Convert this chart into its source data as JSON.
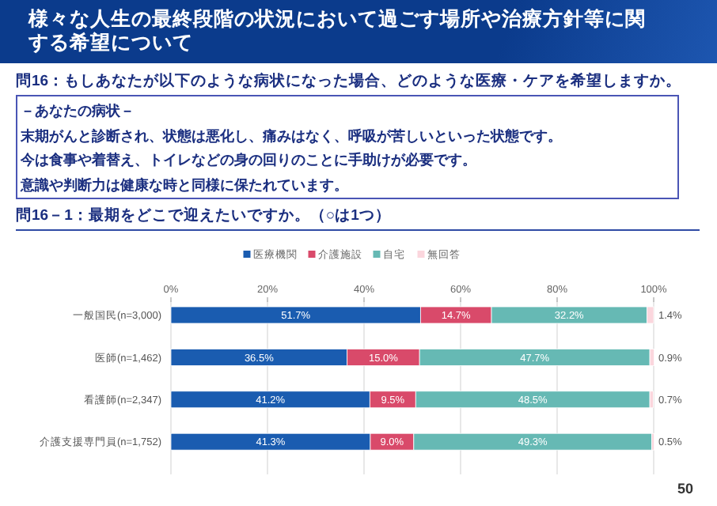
{
  "chart_data": {
    "type": "bar",
    "orientation": "horizontal",
    "stacked": true,
    "title": "様々な人生の最終段階の状況において過ごす場所や治療方針等に関する希望について",
    "subtitle": "問16：もしあなたが以下のような病状になった場合、どのような医療・ケアを希望しますか。",
    "annotations": [
      "－あなたの病状－",
      "末期がんと診断され、状態は悪化し、痛みはなく、呼吸が苦しいといった状態です。",
      "今は食事や着替え、トイレなどの身の回りのことに手助けが必要です。",
      "意識や判断力は健康な時と同様に保たれています。",
      "問16－1：最期をどこで迎えたいですか。（○は1つ）",
      "50"
    ],
    "categories": [
      "一般国民(n=3,000)",
      "医師(n=1,462)",
      "看護師(n=2,347)",
      "介護支援専門員(n=1,752)"
    ],
    "series": [
      {
        "name": "医療機関",
        "color": "#1a5cb0",
        "values": [
          51.7,
          36.5,
          41.2,
          41.3
        ],
        "value_labels": [
          "51.7%",
          "36.5%",
          "41.2%",
          "41.3%"
        ]
      },
      {
        "name": "介護施設",
        "color": "#d94a6a",
        "values": [
          14.7,
          15.0,
          9.5,
          9.0
        ],
        "value_labels": [
          "14.7%",
          "15.0%",
          "9.5%",
          "9.0%"
        ]
      },
      {
        "name": "自宅",
        "color": "#66b9b4",
        "values": [
          32.2,
          47.7,
          48.5,
          49.3
        ],
        "value_labels": [
          "32.2%",
          "47.7%",
          "48.5%",
          "49.3%"
        ]
      },
      {
        "name": "無回答",
        "color": "#fbd6dd",
        "values": [
          1.4,
          0.9,
          0.7,
          0.5
        ],
        "value_labels": [
          "1.4%",
          "0.9%",
          "0.7%",
          "0.5%"
        ]
      }
    ],
    "xlim": [
      0,
      100
    ],
    "xticks": [
      {
        "value": 0,
        "label": "0%"
      },
      {
        "value": 20,
        "label": "20%"
      },
      {
        "value": 40,
        "label": "40%"
      },
      {
        "value": 60,
        "label": "60%"
      },
      {
        "value": 80,
        "label": "80%"
      },
      {
        "value": 100,
        "label": "100%"
      }
    ],
    "grid": "x",
    "legend": "top"
  }
}
